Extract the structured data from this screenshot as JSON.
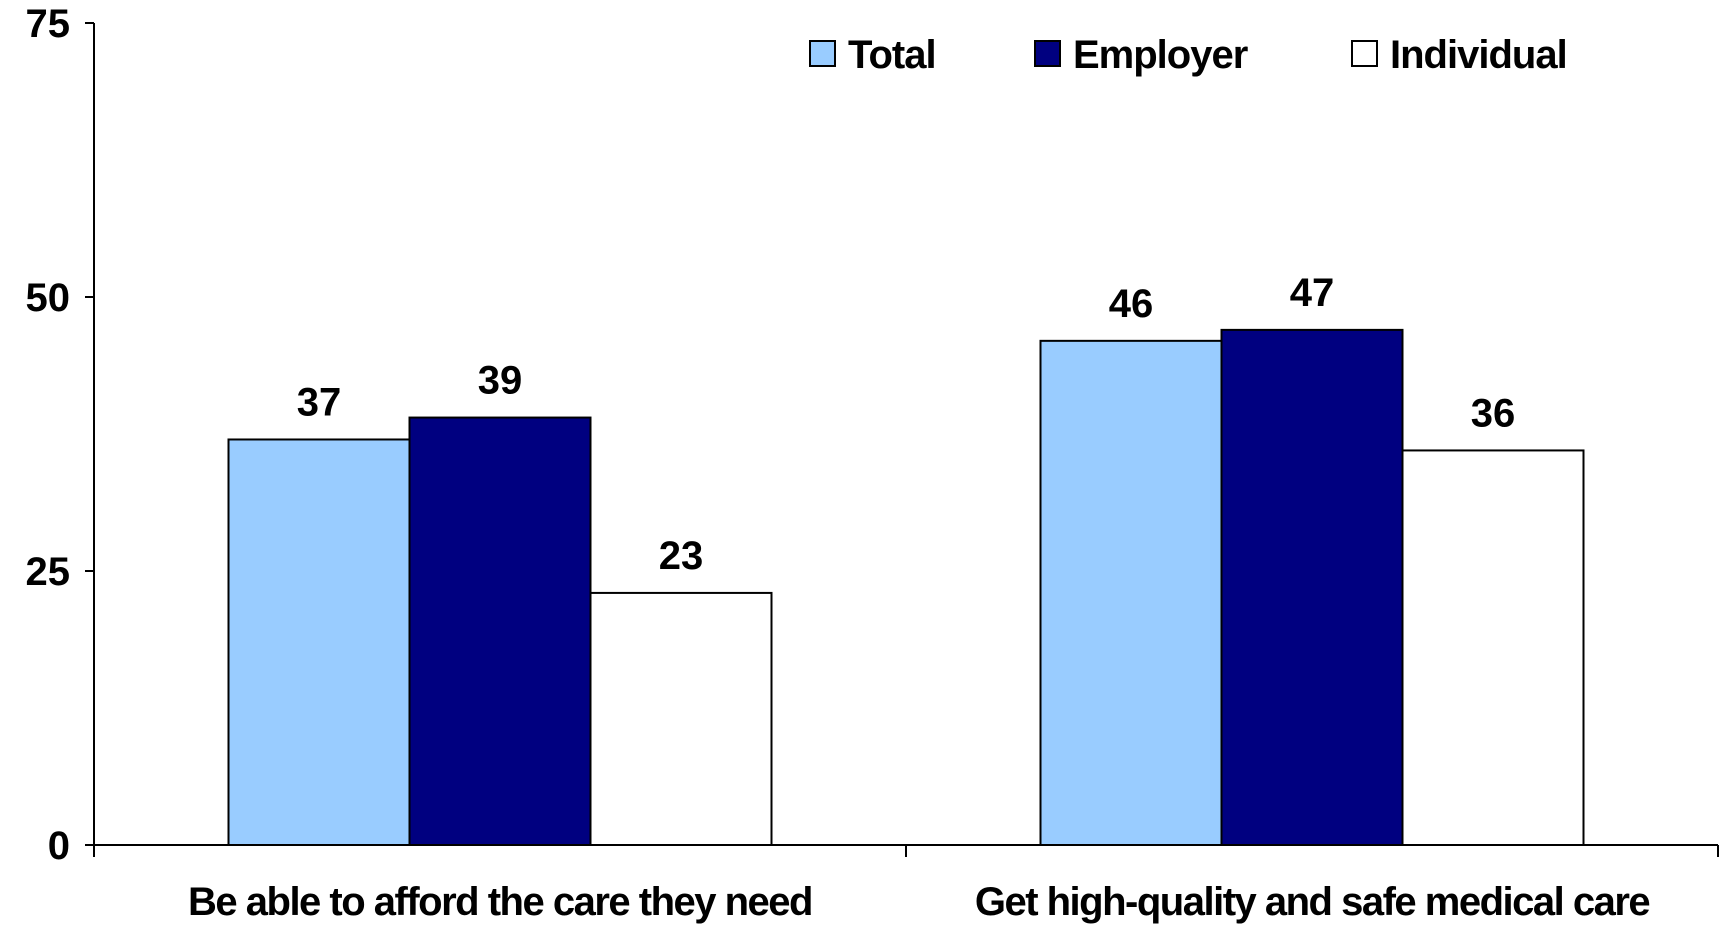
{
  "chart_data": {
    "type": "bar",
    "categories": [
      "Be able to afford the care they need",
      "Get high-quality and safe medical care"
    ],
    "series": [
      {
        "name": "Total",
        "values": [
          37,
          46
        ],
        "color": "#99CCFF"
      },
      {
        "name": "Employer",
        "values": [
          39,
          47
        ],
        "color": "#000080"
      },
      {
        "name": "Individual",
        "values": [
          23,
          36
        ],
        "color": "#FFFFFF"
      }
    ],
    "title": "",
    "xlabel": "",
    "ylabel": "",
    "ylim": [
      0,
      75
    ],
    "yticks": [
      "0",
      "25",
      "50",
      "75"
    ],
    "grid": false,
    "legend_position": "top-right"
  }
}
